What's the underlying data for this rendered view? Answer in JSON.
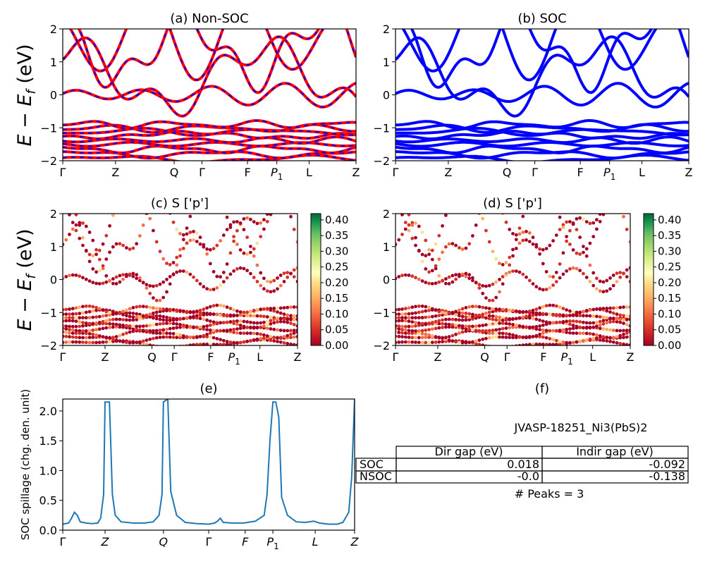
{
  "titles": {
    "a": "(a) Non-SOC",
    "b": "(b) SOC",
    "c": "(c)  S ['p']",
    "d": "(d) S ['p']",
    "e": "(e)",
    "f": "(f)"
  },
  "band_ylabel": "E − E_f (eV)",
  "band_ylabel_main": "E − E",
  "band_ylabel_sub": "f",
  "band_ylabel_unit": " (eV)",
  "spillage_ylabel": "SOC spillage (chg. den. unit)",
  "kpath_labels": [
    "Γ",
    "Z",
    "Q",
    "Γ",
    "F",
    "P",
    "L",
    "Z"
  ],
  "kpath_sub": "1",
  "colorbar_ticks": [
    "0.40",
    "0.35",
    "0.30",
    "0.25",
    "0.20",
    "0.15",
    "0.10",
    "0.05",
    "0.00"
  ],
  "table": {
    "header": "JVASP-18251_Ni3(PbS)2",
    "col_headers": [
      "Dir gap (eV)",
      "Indir gap (eV)"
    ],
    "rows": [
      {
        "label": "SOC",
        "dir": "0.018",
        "indir": "-0.092"
      },
      {
        "label": "NSOC",
        "dir": "-0.0",
        "indir": "-0.138"
      }
    ],
    "peaks": "# Peaks = 3"
  },
  "colors": {
    "nonsoc_band": "#ff0000",
    "nonsoc_dash": "#0000ff",
    "soc_band": "#0000ff",
    "spillage_line": "#1f77b4"
  },
  "chart_data": [
    {
      "id": "a",
      "type": "line",
      "title": "(a) Non-SOC",
      "ylabel": "E − E_f (eV)",
      "ylim": [
        -2,
        2
      ],
      "yticks": [
        -2,
        -1,
        0,
        1,
        2
      ],
      "xticks": [
        "Γ",
        "Z",
        "Q",
        "Γ",
        "F",
        "P1",
        "L",
        "Z"
      ],
      "xtick_pos": [
        0,
        0.18,
        0.38,
        0.475,
        0.63,
        0.73,
        0.84,
        1.0
      ],
      "bands_center": [
        -1.95,
        -1.8,
        -1.65,
        -1.5,
        -1.38,
        -1.22,
        -1.12,
        -1.02,
        -0.9,
        0.0,
        0.55,
        1.4,
        1.8
      ]
    },
    {
      "id": "b",
      "type": "line",
      "title": "(b) SOC",
      "ylim": [
        -2,
        2
      ],
      "yticks": [
        -2,
        -1,
        0,
        1,
        2
      ],
      "xticks": [
        "Γ",
        "Z",
        "Q",
        "Γ",
        "F",
        "P1",
        "L",
        "Z"
      ],
      "xtick_pos": [
        0,
        0.18,
        0.38,
        0.475,
        0.63,
        0.73,
        0.84,
        1.0
      ],
      "bands_center": [
        -1.95,
        -1.8,
        -1.65,
        -1.5,
        -1.38,
        -1.22,
        -1.12,
        -1.02,
        -0.9,
        0.0,
        0.55,
        1.4,
        1.8
      ]
    },
    {
      "id": "c",
      "type": "scatter",
      "title": "(c)  S ['p']",
      "ylabel": "E − E_f (eV)",
      "ylim": [
        -2,
        2
      ],
      "yticks": [
        -2,
        -1,
        0,
        1,
        2
      ],
      "xticks": [
        "Γ",
        "Z",
        "Q",
        "Γ",
        "F",
        "P1",
        "L",
        "Z"
      ],
      "xtick_pos": [
        0,
        0.18,
        0.38,
        0.475,
        0.63,
        0.73,
        0.84,
        1.0
      ],
      "colorbar": {
        "min": 0.0,
        "max": 0.42,
        "colormap": "RdYlGn",
        "ticks": [
          0.0,
          0.05,
          0.1,
          0.15,
          0.2,
          0.25,
          0.3,
          0.35,
          0.4
        ]
      }
    },
    {
      "id": "d",
      "type": "scatter",
      "title": "(d) S ['p']",
      "ylim": [
        -2,
        2
      ],
      "yticks": [
        -2,
        -1,
        0,
        1,
        2
      ],
      "xticks": [
        "Γ",
        "Z",
        "Q",
        "Γ",
        "F",
        "P1",
        "L",
        "Z"
      ],
      "xtick_pos": [
        0,
        0.18,
        0.38,
        0.475,
        0.63,
        0.73,
        0.84,
        1.0
      ],
      "colorbar": {
        "min": 0.0,
        "max": 0.42,
        "colormap": "RdYlGn",
        "ticks": [
          0.0,
          0.05,
          0.1,
          0.15,
          0.2,
          0.25,
          0.3,
          0.35,
          0.4
        ]
      }
    },
    {
      "id": "e",
      "type": "line",
      "title": "(e)",
      "ylabel": "SOC spillage (chg. den. unit)",
      "ylim": [
        0,
        2.2
      ],
      "yticks": [
        0.0,
        0.5,
        1.0,
        1.5,
        2.0
      ],
      "xticks": [
        "Γ",
        "Z",
        "Q",
        "Γ",
        "F",
        "P1",
        "L",
        "Z"
      ],
      "xtick_pos": [
        0,
        0.145,
        0.345,
        0.5,
        0.625,
        0.72,
        0.865,
        1.0
      ],
      "x": [
        0,
        0.02,
        0.03,
        0.04,
        0.05,
        0.06,
        0.08,
        0.1,
        0.12,
        0.13,
        0.14,
        0.145,
        0.16,
        0.17,
        0.18,
        0.2,
        0.24,
        0.28,
        0.31,
        0.33,
        0.34,
        0.345,
        0.36,
        0.37,
        0.39,
        0.42,
        0.46,
        0.5,
        0.52,
        0.53,
        0.54,
        0.55,
        0.58,
        0.62,
        0.66,
        0.69,
        0.7,
        0.71,
        0.72,
        0.73,
        0.74,
        0.75,
        0.77,
        0.8,
        0.83,
        0.86,
        0.88,
        0.91,
        0.94,
        0.96,
        0.98,
        0.99,
        1.0
      ],
      "values": [
        0.1,
        0.12,
        0.2,
        0.3,
        0.25,
        0.14,
        0.12,
        0.11,
        0.12,
        0.2,
        0.6,
        2.15,
        2.15,
        0.6,
        0.25,
        0.14,
        0.12,
        0.12,
        0.14,
        0.25,
        0.6,
        2.15,
        2.2,
        0.65,
        0.25,
        0.13,
        0.11,
        0.1,
        0.12,
        0.15,
        0.2,
        0.13,
        0.12,
        0.12,
        0.15,
        0.25,
        0.6,
        1.5,
        2.15,
        2.15,
        1.9,
        0.55,
        0.25,
        0.14,
        0.13,
        0.15,
        0.12,
        0.1,
        0.1,
        0.13,
        0.3,
        0.9,
        2.2
      ]
    }
  ]
}
